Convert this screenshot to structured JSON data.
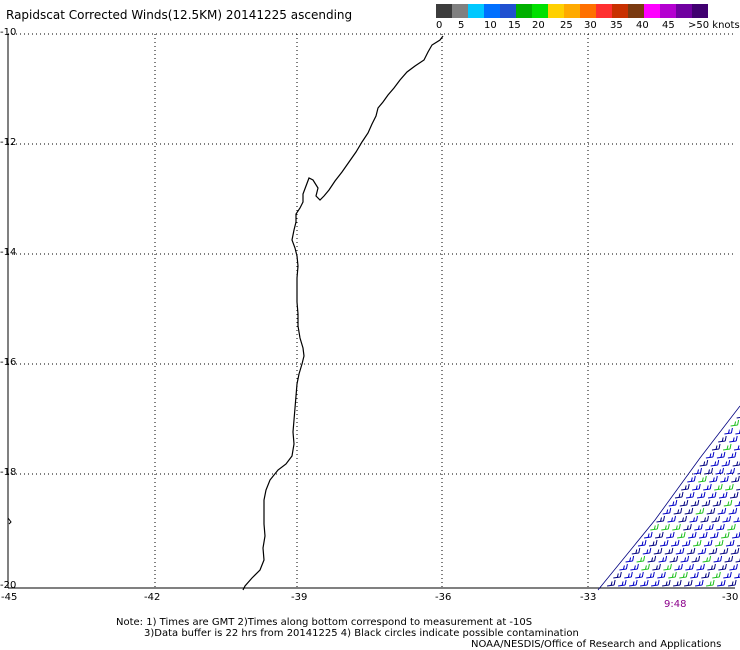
{
  "title": "Rapidscat Corrected Winds(12.5KM) 20141225 ascending",
  "scale": {
    "colors": [
      "#3c3c3c",
      "#808080",
      "#00c8ff",
      "#0070ff",
      "#2050d0",
      "#00b000",
      "#00e000",
      "#ffd000",
      "#ffaa00",
      "#ff7000",
      "#ff3030",
      "#c83000",
      "#7a3a10",
      "#ff00ff",
      "#b400d0",
      "#7000a0",
      "#400070"
    ],
    "labels": [
      "0",
      "5",
      "10",
      "15",
      "20",
      "25",
      "30",
      "35",
      "40",
      "45",
      ">50 knots"
    ]
  },
  "map": {
    "lat_labels": [
      "-10",
      "-12",
      "-14",
      "-16",
      "-18",
      "-20"
    ],
    "lon_labels": [
      "-45",
      "-42",
      "-39",
      "-36",
      "-33",
      "-30"
    ],
    "lat_range": [
      -10,
      -20
    ],
    "lon_range": [
      -45,
      -30
    ],
    "grid": "dotted",
    "wind_barb_colors": [
      "#0000c8",
      "#000080",
      "#20c020"
    ]
  },
  "pass_time": "9:48",
  "notes": {
    "line1": "Note: 1) Times are GMT 2)Times along bottom correspond to measurement at -10S",
    "line2": "3)Data buffer is 22 hrs from 20141225 4) Black circles indicate possible contamination",
    "credit": "NOAA/NESDIS/Office of Research and Applications"
  }
}
